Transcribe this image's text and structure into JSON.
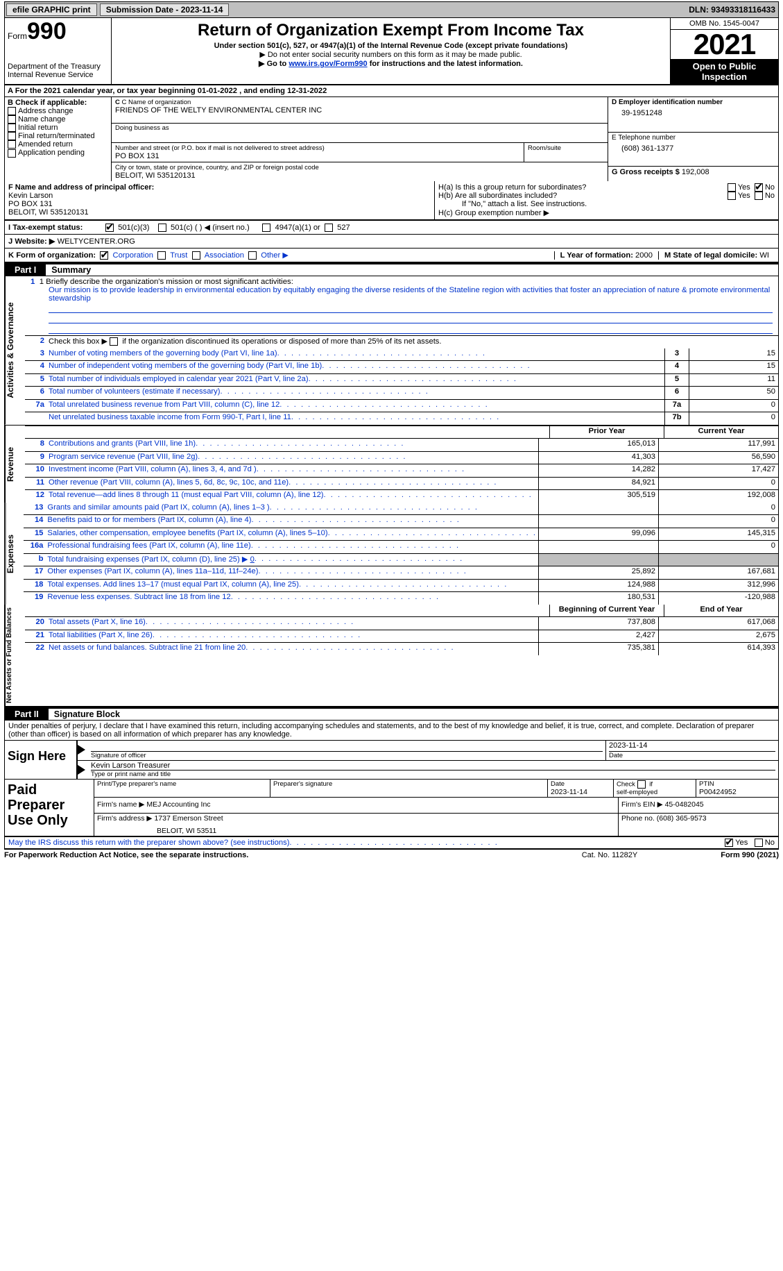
{
  "top": {
    "efile": "efile GRAPHIC print",
    "sub_lbl": "Submission Date - ",
    "sub_date": "2023-11-14",
    "dln_lbl": "DLN: ",
    "dln": "93493318116433"
  },
  "hdr": {
    "form": "Form",
    "form_no": "990",
    "dept": "Department of the Treasury",
    "irs": "Internal Revenue Service",
    "title": "Return of Organization Exempt From Income Tax",
    "sub": "Under section 501(c), 527, or 4947(a)(1) of the Internal Revenue Code (except private foundations)",
    "note1": "▶ Do not enter social security numbers on this form as it may be made public.",
    "note2_a": "▶ Go to ",
    "note2_link": "www.irs.gov/Form990",
    "note2_b": " for instructions and the latest information.",
    "omb": "OMB No. 1545-0047",
    "year": "2021",
    "inspect": "Open to Public Inspection"
  },
  "A": {
    "text_a": "A For the 2021 calendar year, or tax year beginning ",
    "beg": "01-01-2022",
    "mid": "   , and ending ",
    "end": "12-31-2022"
  },
  "B": {
    "lbl": "B Check if applicable:",
    "opts": [
      "Address change",
      "Name change",
      "Initial return",
      "Final return/terminated",
      "Amended return",
      "Application pending"
    ]
  },
  "C": {
    "name_lbl": "C Name of organization",
    "name": "FRIENDS OF THE WELTY ENVIRONMENTAL CENTER INC",
    "dba_lbl": "Doing business as",
    "addr_lbl": "Number and street (or P.O. box if mail is not delivered to street address)",
    "room_lbl": "Room/suite",
    "addr": "PO BOX 131",
    "city_lbl": "City or town, state or province, country, and ZIP or foreign postal code",
    "city": "BELOIT, WI  535120131"
  },
  "D": {
    "lbl": "D Employer identification number",
    "val": "39-1951248"
  },
  "E": {
    "lbl": "E Telephone number",
    "val": "(608) 361-1377"
  },
  "G": {
    "lbl": "G Gross receipts $ ",
    "val": "192,008"
  },
  "F": {
    "lbl": "F  Name and address of principal officer:",
    "name": "Kevin Larson",
    "addr1": "PO BOX 131",
    "addr2": "BELOIT, WI  535120131"
  },
  "H": {
    "a": "H(a)  Is this a group return for subordinates?",
    "b": "H(b)  Are all subordinates included?",
    "b_note": "If \"No,\" attach a list. See instructions.",
    "c": "H(c)  Group exemption number ▶"
  },
  "I": {
    "lbl": "I   Tax-exempt status:",
    "o1": "501(c)(3)",
    "o2": "501(c) (  ) ◀ (insert no.)",
    "o3": "4947(a)(1) or",
    "o4": "527"
  },
  "J": {
    "lbl": "J   Website: ▶  ",
    "val": "WELTYCENTER.ORG"
  },
  "K": {
    "lbl": "K Form of organization:",
    "o": [
      "Corporation",
      "Trust",
      "Association",
      "Other ▶"
    ],
    "L": "L Year of formation: ",
    "Lval": "2000",
    "M": "M State of legal domicile: ",
    "Mval": "WI"
  },
  "part1": {
    "no": "Part I",
    "title": "Summary"
  },
  "mission": {
    "lbl": "1   Briefly describe the organization's mission or most significant activities:",
    "txt": "Our mission is to provide leadership in environmental education by equitably engaging the diverse residents of the Stateline region with activities that foster an appreciation of nature & promote environmental stewardship"
  },
  "line2": "Check this box ▶       if the organization discontinued its operations or disposed of more than 25% of its net assets.",
  "gov_lines": [
    {
      "n": "3",
      "d": "Number of voting members of the governing body (Part VI, line 1a)",
      "b": "3",
      "v": "15"
    },
    {
      "n": "4",
      "d": "Number of independent voting members of the governing body (Part VI, line 1b)",
      "b": "4",
      "v": "15"
    },
    {
      "n": "5",
      "d": "Total number of individuals employed in calendar year 2021 (Part V, line 2a)",
      "b": "5",
      "v": "11"
    },
    {
      "n": "6",
      "d": "Total number of volunteers (estimate if necessary)",
      "b": "6",
      "v": "50"
    },
    {
      "n": "7a",
      "d": "Total unrelated business revenue from Part VIII, column (C), line 12",
      "b": "7a",
      "v": "0"
    },
    {
      "n": " ",
      "d": "Net unrelated business taxable income from Form 990-T, Part I, line 11",
      "b": "7b",
      "v": "0",
      "sub": "b"
    }
  ],
  "pycy": {
    "py": "Prior Year",
    "cy": "Current Year",
    "boy": "Beginning of Current Year",
    "eoy": "End of Year"
  },
  "rev_lines": [
    {
      "n": "8",
      "d": "Contributions and grants (Part VIII, line 1h)",
      "py": "165,013",
      "cy": "117,991"
    },
    {
      "n": "9",
      "d": "Program service revenue (Part VIII, line 2g)",
      "py": "41,303",
      "cy": "56,590"
    },
    {
      "n": "10",
      "d": "Investment income (Part VIII, column (A), lines 3, 4, and 7d )",
      "py": "14,282",
      "cy": "17,427"
    },
    {
      "n": "11",
      "d": "Other revenue (Part VIII, column (A), lines 5, 6d, 8c, 9c, 10c, and 11e)",
      "py": "84,921",
      "cy": "0"
    },
    {
      "n": "12",
      "d": "Total revenue—add lines 8 through 11 (must equal Part VIII, column (A), line 12)",
      "py": "305,519",
      "cy": "192,008"
    }
  ],
  "exp_lines": [
    {
      "n": "13",
      "d": "Grants and similar amounts paid (Part IX, column (A), lines 1–3 )",
      "py": "",
      "cy": "0"
    },
    {
      "n": "14",
      "d": "Benefits paid to or for members (Part IX, column (A), line 4)",
      "py": "",
      "cy": "0"
    },
    {
      "n": "15",
      "d": "Salaries, other compensation, employee benefits (Part IX, column (A), lines 5–10)",
      "py": "99,096",
      "cy": "145,315"
    },
    {
      "n": "16a",
      "d": "Professional fundraising fees (Part IX, column (A), line 11e)",
      "py": "",
      "cy": "0"
    },
    {
      "n": "b",
      "d": "Total fundraising expenses (Part IX, column (D), line 25) ▶",
      "py": "SHADE",
      "cy": "SHADE",
      "extra": "0"
    },
    {
      "n": "17",
      "d": "Other expenses (Part IX, column (A), lines 11a–11d, 11f–24e)",
      "py": "25,892",
      "cy": "167,681"
    },
    {
      "n": "18",
      "d": "Total expenses. Add lines 13–17 (must equal Part IX, column (A), line 25)",
      "py": "124,988",
      "cy": "312,996"
    },
    {
      "n": "19",
      "d": "Revenue less expenses. Subtract line 18 from line 12",
      "py": "180,531",
      "cy": "-120,988"
    }
  ],
  "na_lines": [
    {
      "n": "20",
      "d": "Total assets (Part X, line 16)",
      "py": "737,808",
      "cy": "617,068"
    },
    {
      "n": "21",
      "d": "Total liabilities (Part X, line 26)",
      "py": "2,427",
      "cy": "2,675"
    },
    {
      "n": "22",
      "d": "Net assets or fund balances. Subtract line 21 from line 20",
      "py": "735,381",
      "cy": "614,393"
    }
  ],
  "vlabels": {
    "gov": "Activities & Governance",
    "rev": "Revenue",
    "exp": "Expenses",
    "na": "Net Assets or Fund Balances"
  },
  "part2": {
    "no": "Part II",
    "title": "Signature Block"
  },
  "decl": "Under penalties of perjury, I declare that I have examined this return, including accompanying schedules and statements, and to the best of my knowledge and belief, it is true, correct, and complete. Declaration of preparer (other than officer) is based on all information of which preparer has any knowledge.",
  "sign": {
    "lbl": "Sign Here",
    "date": "2023-11-14",
    "sig_lbl": "Signature of officer",
    "date_lbl": "Date",
    "name": "Kevin Larson  Treasurer",
    "name_lbl": "Type or print name and title"
  },
  "prep": {
    "lbl": "Paid Preparer Use Only",
    "h": [
      "Print/Type preparer's name",
      "Preparer's signature",
      "Date",
      "Check       if self-employed",
      "PTIN"
    ],
    "date": "2023-11-14",
    "ptin": "P00424952",
    "firm_lbl": "Firm's name    ▶ ",
    "firm": "MEJ Accounting Inc",
    "ein_lbl": "Firm's EIN ▶ ",
    "ein": "45-0482045",
    "addr_lbl": "Firm's address ▶ ",
    "addr1": "1737 Emerson Street",
    "addr2": "BELOIT, WI  53511",
    "ph_lbl": "Phone no. ",
    "ph": "(608) 365-9573"
  },
  "footer_q": "May the IRS discuss this return with the preparer shown above? (see instructions)",
  "yes": "Yes",
  "no": "No",
  "bottom": {
    "pra": "For Paperwork Reduction Act Notice, see the separate instructions.",
    "cat": "Cat. No. 11282Y",
    "form": "Form 990 (2021)"
  }
}
